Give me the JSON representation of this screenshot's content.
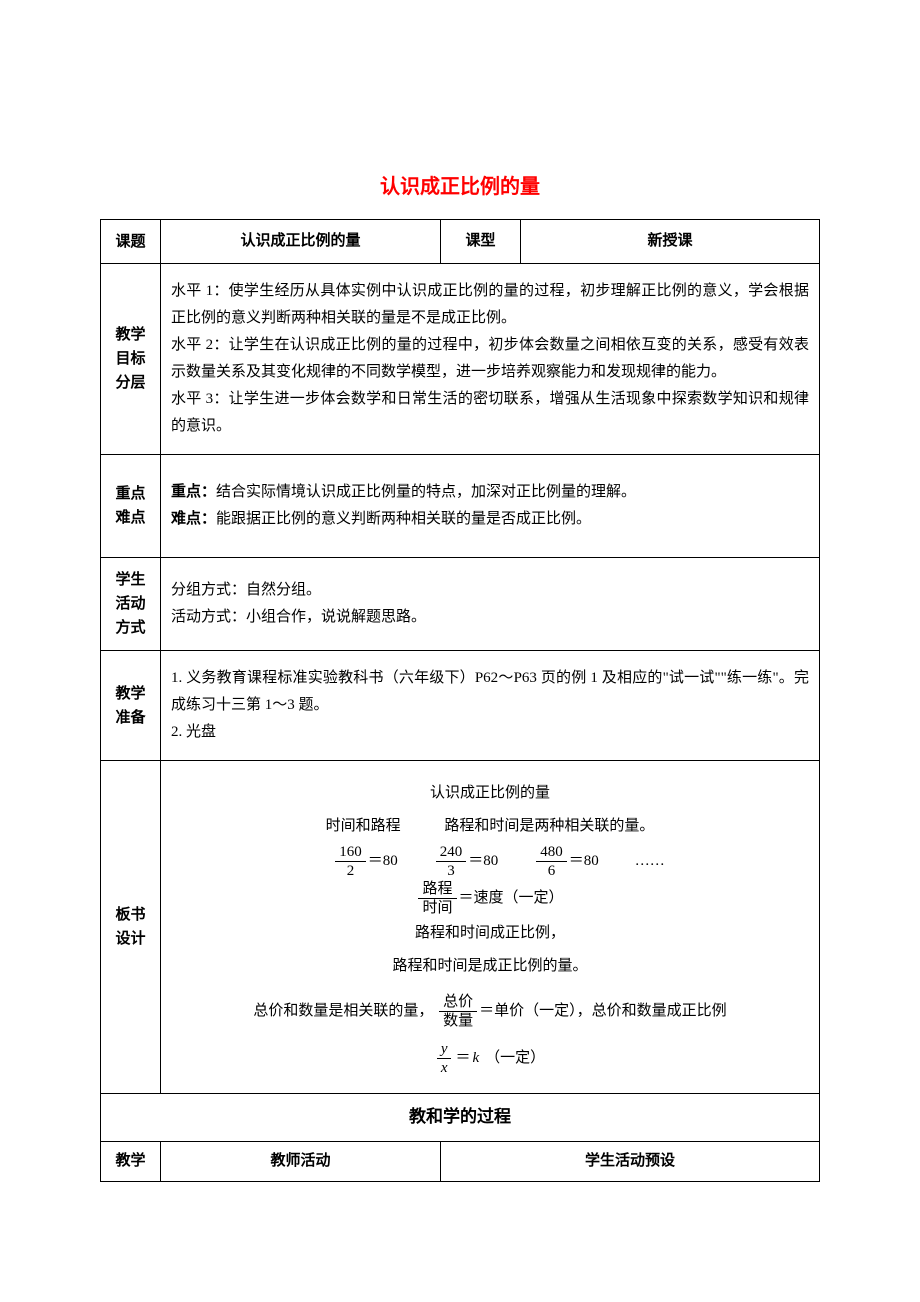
{
  "title_color": "#ff0000",
  "doc_title": "认识成正比例的量",
  "header": {
    "c1": "课题",
    "c2": "认识成正比例的量",
    "c3": "课型",
    "c4": "新授课"
  },
  "rows": {
    "goals": {
      "label": "教学\n目标\n分层",
      "text": "水平 1：使学生经历从具体实例中认识成正比例的量的过程，初步理解正比例的意义，学会根据正比例的意义判断两种相关联的量是不是成正比例。\n水平 2：让学生在认识成正比例的量的过程中，初步体会数量之间相依互变的关系，感受有效表示数量关系及其变化规律的不同数学模型，进一步培养观察能力和发现规律的能力。\n水平 3：让学生进一步体会数学和日常生活的密切联系，增强从生活现象中探索数学知识和规律的意识。"
    },
    "keypoints": {
      "label": "重点\n难点",
      "l1_bold": "重点：",
      "l1": "结合实际情境认识成正比例量的特点，加深对正比例量的理解。",
      "l2_bold": "难点：",
      "l2": "能跟据正比例的意义判断两种相关联的量是否成正比例。"
    },
    "activity": {
      "label": "学生\n活动\n方式",
      "text": "分组方式：自然分组。\n活动方式：小组合作，说说解题思路。"
    },
    "prep": {
      "label": "教学\n准备",
      "text": "1. 义务教育课程标准实验教科书（六年级下）P62～P63 页的例 1 及相应的\"试一试\"\"练一练\"。完成练习十三第 1～3 题。\n2. 光盘"
    },
    "board": {
      "label": "板书\n设计",
      "title": "认识成正比例的量",
      "line_rel_a": "时间和路程",
      "line_rel_b": "路程和时间是两种相关联的量。",
      "fracs": [
        {
          "num": "160",
          "den": "2",
          "eq": "＝80"
        },
        {
          "num": "240",
          "den": "3",
          "eq": "＝80"
        },
        {
          "num": "480",
          "den": "6",
          "eq": "＝80"
        }
      ],
      "dots": "……",
      "speed_num": "路程",
      "speed_den": "时间",
      "speed_eq": "＝速度（一定）",
      "line3": "路程和时间成正比例，",
      "line4": "路程和时间是成正比例的量。",
      "price_pre": "总价和数量是相关联的量，",
      "price_num": "总价",
      "price_den": "数量",
      "price_eq": "＝单价（一定），总价和数量成正比例",
      "k_num": "y",
      "k_den": "x",
      "k_eq_a": "＝",
      "k_eq_b": "k",
      "k_eq_c": "（一定）"
    }
  },
  "process_header": "教和学的过程",
  "sub": {
    "c1": "教学",
    "c2": "教师活动",
    "c3": "学生活动预设"
  }
}
